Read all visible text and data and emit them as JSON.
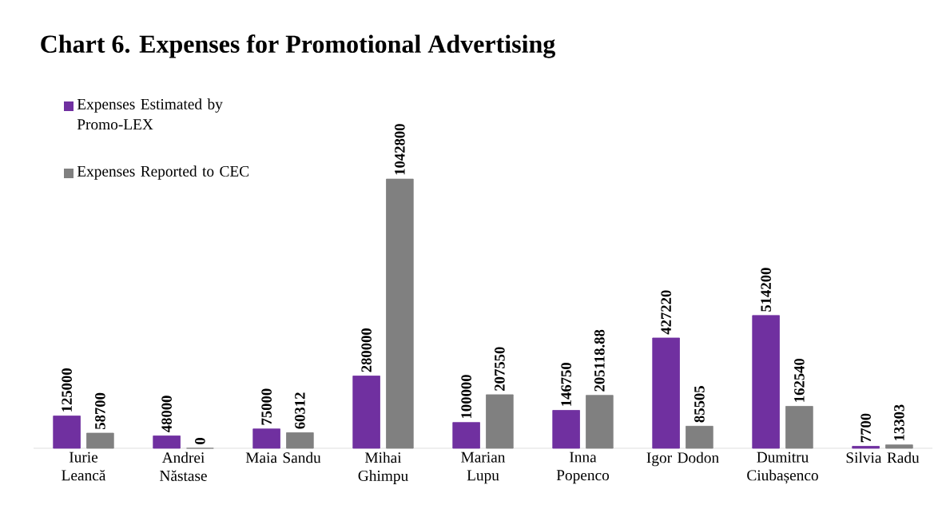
{
  "chart_data": {
    "type": "bar",
    "title": "Chart 6. Expenses for Promotional Advertising",
    "categories": [
      "Iurie Leancă",
      "Andrei Năstase",
      "Maia Sandu",
      "Mihai Ghimpu",
      "Marian Lupu",
      "Inna Popenco",
      "Igor Dodon",
      "Dumitru Ciubașenco",
      "Silvia Radu"
    ],
    "series": [
      {
        "name": "Expenses Estimated by Promo-LEX",
        "color": "#7030a0",
        "values": [
          125000,
          48000,
          75000,
          280000,
          100000,
          146750,
          427220,
          514200,
          7700
        ]
      },
      {
        "name": "Expenses Reported to CEC",
        "color": "#808080",
        "values": [
          58700,
          0,
          60312,
          1042800,
          207550,
          205118.88,
          85505,
          162540,
          13303
        ]
      }
    ],
    "data_labels": true,
    "legend": "top left"
  }
}
